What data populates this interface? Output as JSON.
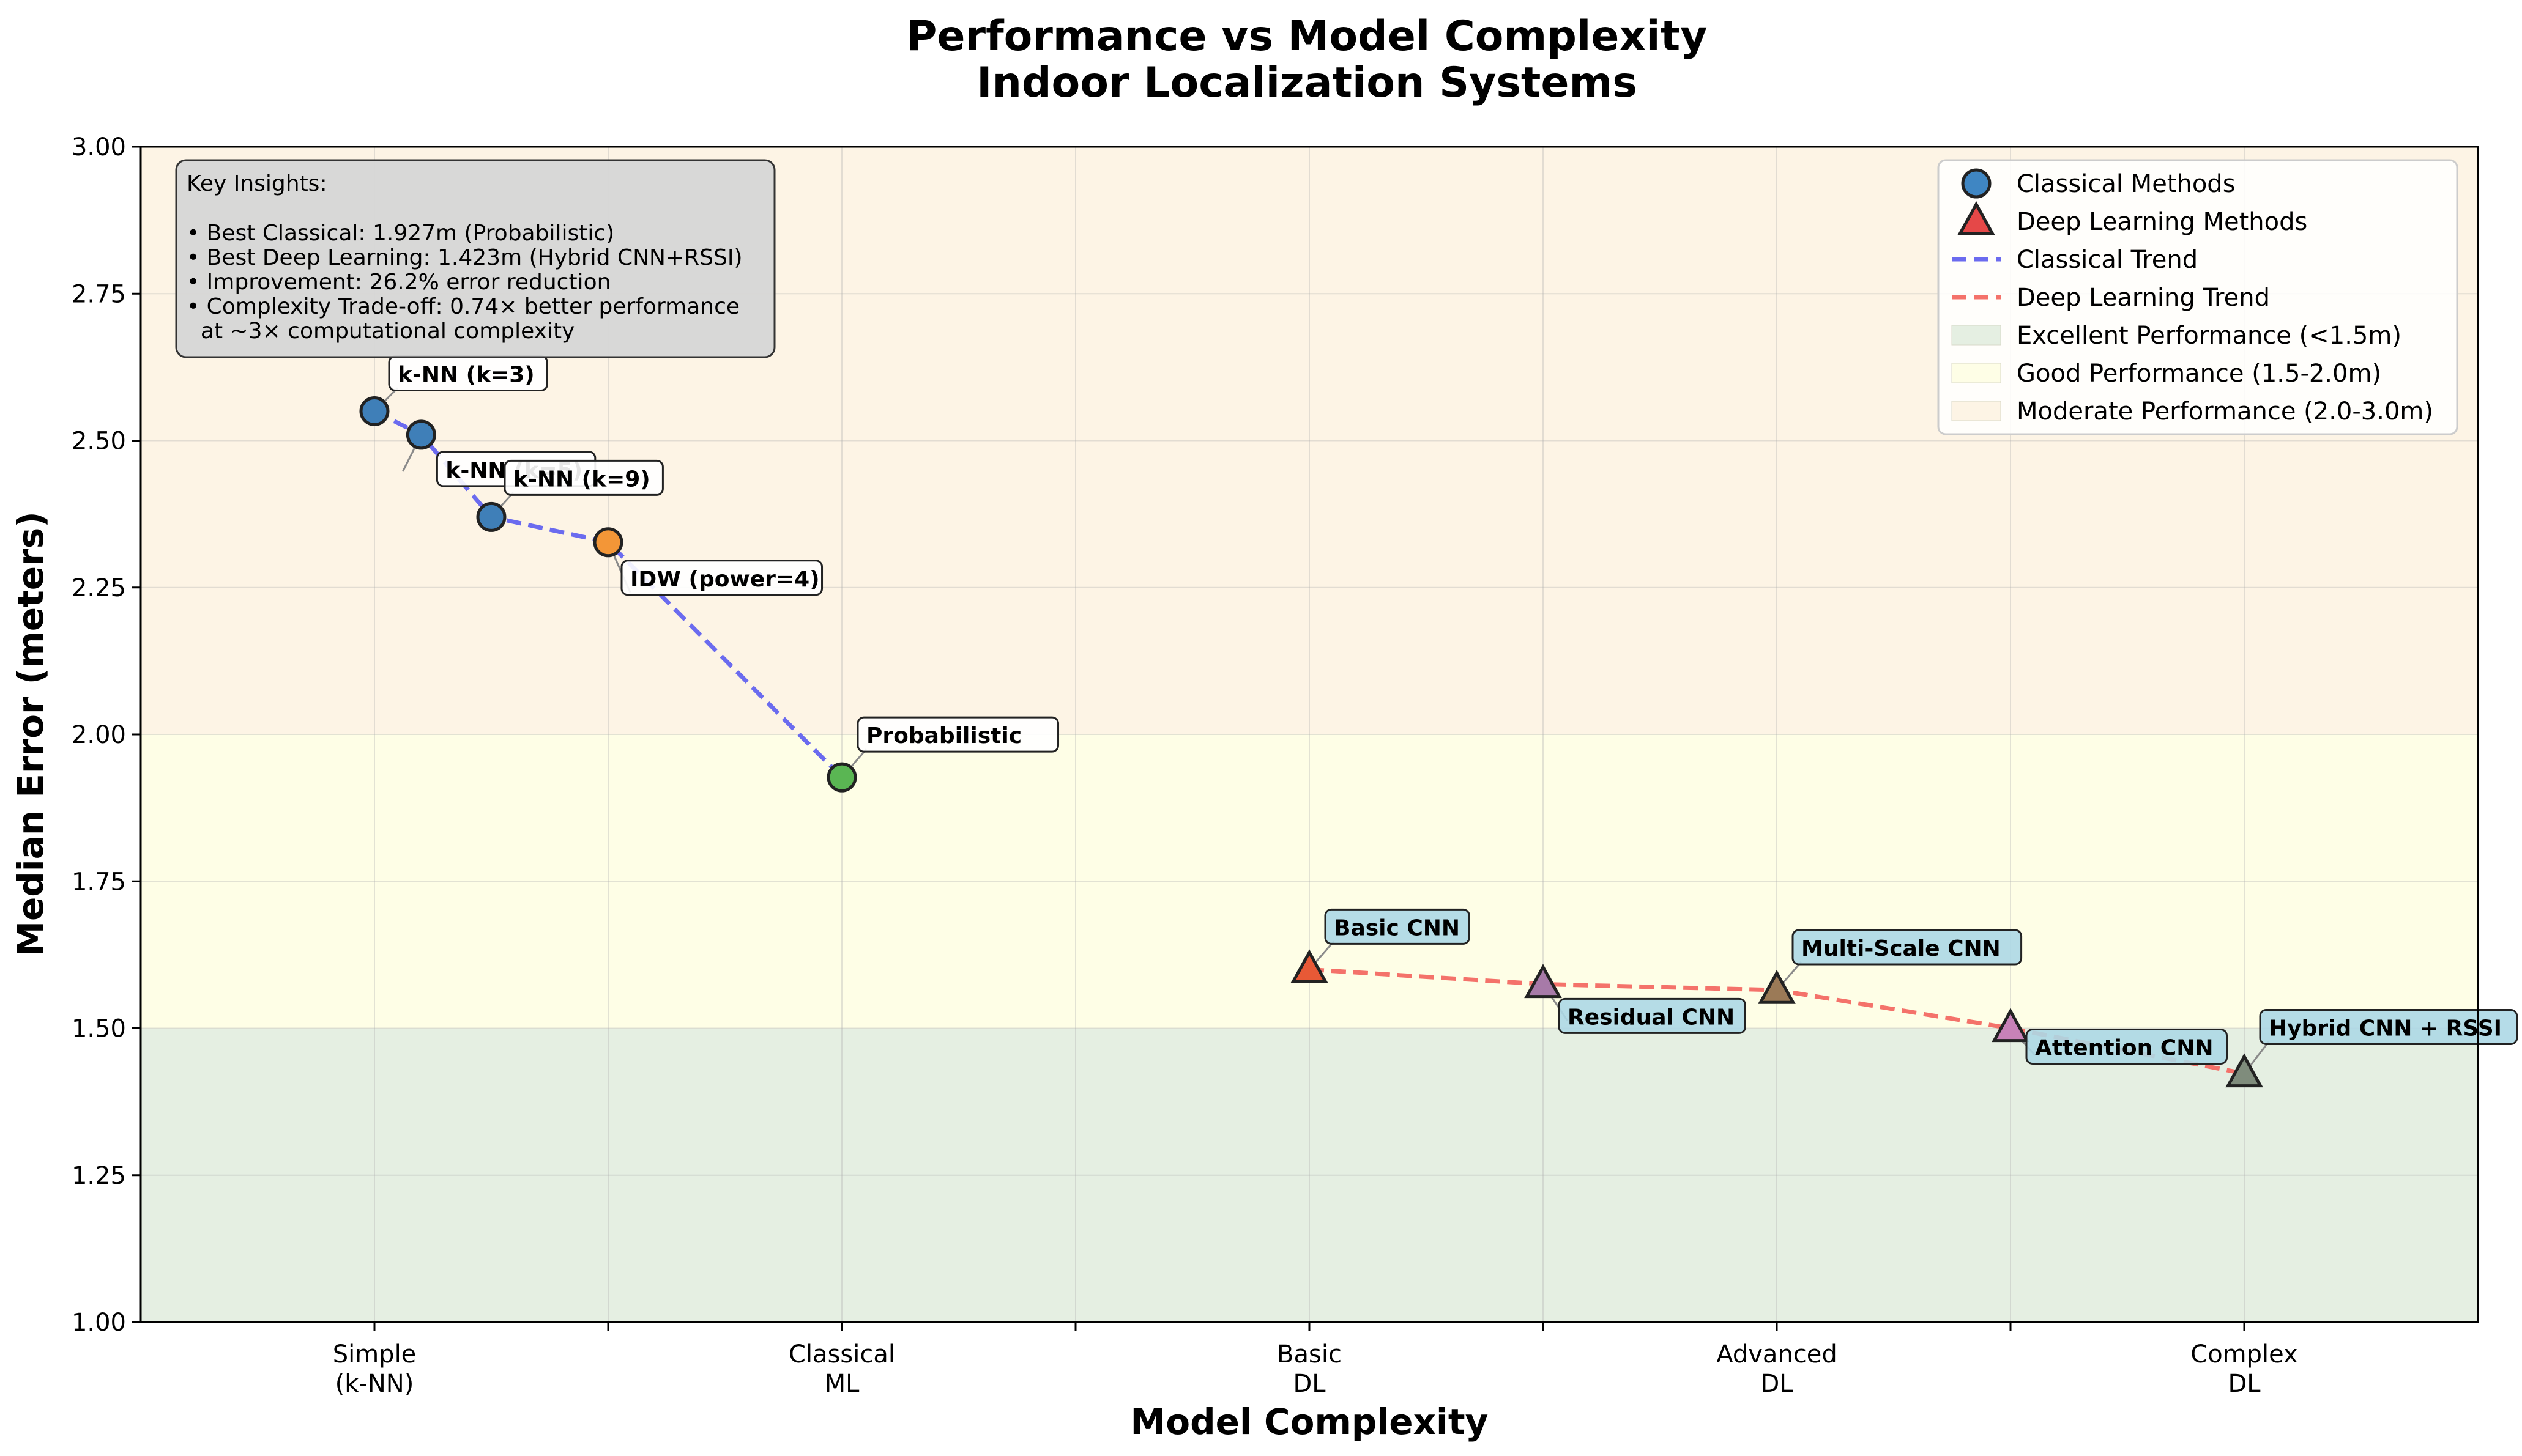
{
  "chart_data": {
    "type": "scatter",
    "title": "Performance vs Model Complexity",
    "subtitle": "Indoor Localization Systems",
    "xlabel": "Model Complexity",
    "ylabel": "Median Error (meters)",
    "ylim": [
      1.0,
      3.0
    ],
    "xlim": [
      0.5,
      5.5
    ],
    "y_ticks": [
      "1.00",
      "1.25",
      "1.50",
      "1.75",
      "2.00",
      "2.25",
      "2.50",
      "2.75",
      "3.00"
    ],
    "x_ticks": [
      {
        "value": 1,
        "label": [
          "Simple",
          "(k-NN)"
        ]
      },
      {
        "value": 1.5,
        "label": []
      },
      {
        "value": 2,
        "label": [
          "Classical",
          "ML"
        ]
      },
      {
        "value": 2.5,
        "label": []
      },
      {
        "value": 3,
        "label": [
          "Basic",
          "DL"
        ]
      },
      {
        "value": 3.5,
        "label": []
      },
      {
        "value": 4,
        "label": [
          "Advanced",
          "DL"
        ]
      },
      {
        "value": 4.5,
        "label": []
      },
      {
        "value": 5,
        "label": [
          "Complex",
          "DL"
        ]
      }
    ],
    "grid": true,
    "bands": [
      {
        "from": 1.0,
        "to": 1.5,
        "color": "#e5efe2",
        "name": "Excellent Performance (<1.5m)"
      },
      {
        "from": 1.5,
        "to": 2.0,
        "color": "#fefee6",
        "name": "Good Performance (1.5-2.0m)"
      },
      {
        "from": 2.0,
        "to": 3.0,
        "color": "#fdf4e5",
        "name": "Moderate Performance (2.0-3.0m)"
      }
    ],
    "series": [
      {
        "name": "Classical Methods",
        "marker": "circle",
        "trend_name": "Classical Trend",
        "trend_color": "#6b6bef",
        "legend_color": "#3f86c3",
        "points": [
          {
            "x": 1.0,
            "y": 2.55,
            "label": "k-NN (k=3)",
            "color": "#3f7fb8"
          },
          {
            "x": 1.1,
            "y": 2.51,
            "label": "k-NN (k=5)",
            "color": "#3f7fb8"
          },
          {
            "x": 1.25,
            "y": 2.37,
            "label": "k-NN (k=9)",
            "color": "#3f7fb8"
          },
          {
            "x": 1.5,
            "y": 2.327,
            "label": "IDW (power=4)",
            "color": "#f39637"
          },
          {
            "x": 2.0,
            "y": 1.927,
            "label": "Probabilistic",
            "color": "#5ab653"
          }
        ]
      },
      {
        "name": "Deep Learning Methods",
        "marker": "triangle",
        "trend_name": "Deep Learning Trend",
        "trend_color": "#f4726a",
        "legend_color": "#e54848",
        "points": [
          {
            "x": 3.0,
            "y": 1.6,
            "label": "Basic CNN",
            "color": "#e85936"
          },
          {
            "x": 3.5,
            "y": 1.575,
            "label": "Residual CNN",
            "color": "#a77aa8"
          },
          {
            "x": 4.0,
            "y": 1.565,
            "label": "Multi-Scale CNN",
            "color": "#9b7a57"
          },
          {
            "x": 4.5,
            "y": 1.5,
            "label": "Attention CNN",
            "color": "#c882b8"
          },
          {
            "x": 5.0,
            "y": 1.423,
            "label": "Hybrid CNN + RSSI",
            "color": "#7f8c7c"
          }
        ]
      }
    ],
    "insights": {
      "title": "Key Insights:",
      "lines": [
        "• Best Classical: 1.927m (Probabilistic)",
        "• Best Deep Learning: 1.423m (Hybrid CNN+RSSI)",
        "• Improvement: 26.2% error reduction",
        "• Complexity Trade-off: 0.74× better performance",
        "  at ~3× computational complexity"
      ]
    },
    "legend_position": "upper-right"
  }
}
